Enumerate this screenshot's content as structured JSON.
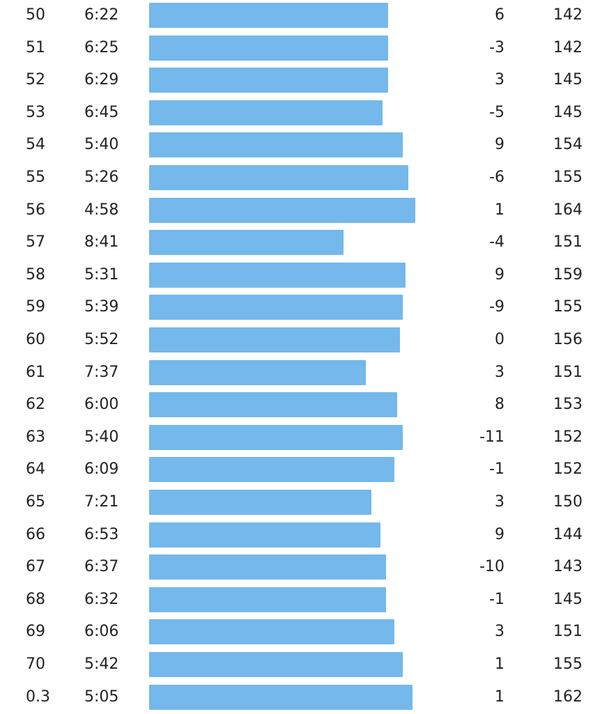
{
  "colors": {
    "bar": "#74b8ec",
    "text": "#222222",
    "background": "#ffffff"
  },
  "splits": [
    {
      "km": "50",
      "pace": "6:22",
      "elev": "6",
      "hr": "142",
      "pace_bar_fraction": 0.899
    },
    {
      "km": "51",
      "pace": "6:25",
      "elev": "-3",
      "hr": "142",
      "pace_bar_fraction": 0.899
    },
    {
      "km": "52",
      "pace": "6:29",
      "elev": "3",
      "hr": "145",
      "pace_bar_fraction": 0.899
    },
    {
      "km": "53",
      "pace": "6:45",
      "elev": "-5",
      "hr": "145",
      "pace_bar_fraction": 0.878
    },
    {
      "km": "54",
      "pace": "5:40",
      "elev": "9",
      "hr": "154",
      "pace_bar_fraction": 0.952
    },
    {
      "km": "55",
      "pace": "5:26",
      "elev": "-6",
      "hr": "155",
      "pace_bar_fraction": 0.974
    },
    {
      "km": "56",
      "pace": "4:58",
      "elev": "1",
      "hr": "164",
      "pace_bar_fraction": 1.0
    },
    {
      "km": "57",
      "pace": "8:41",
      "elev": "-4",
      "hr": "151",
      "pace_bar_fraction": 0.73
    },
    {
      "km": "58",
      "pace": "5:31",
      "elev": "9",
      "hr": "159",
      "pace_bar_fraction": 0.963
    },
    {
      "km": "59",
      "pace": "5:39",
      "elev": "-9",
      "hr": "155",
      "pace_bar_fraction": 0.952
    },
    {
      "km": "60",
      "pace": "5:52",
      "elev": "0",
      "hr": "156",
      "pace_bar_fraction": 0.942
    },
    {
      "km": "61",
      "pace": "7:37",
      "elev": "3",
      "hr": "151",
      "pace_bar_fraction": 0.815
    },
    {
      "km": "62",
      "pace": "6:00",
      "elev": "8",
      "hr": "153",
      "pace_bar_fraction": 0.931
    },
    {
      "km": "63",
      "pace": "5:40",
      "elev": "-11",
      "hr": "152",
      "pace_bar_fraction": 0.952
    },
    {
      "km": "64",
      "pace": "6:09",
      "elev": "-1",
      "hr": "152",
      "pace_bar_fraction": 0.921
    },
    {
      "km": "65",
      "pace": "7:21",
      "elev": "3",
      "hr": "150",
      "pace_bar_fraction": 0.836
    },
    {
      "km": "66",
      "pace": "6:53",
      "elev": "9",
      "hr": "144",
      "pace_bar_fraction": 0.868
    },
    {
      "km": "67",
      "pace": "6:37",
      "elev": "-10",
      "hr": "143",
      "pace_bar_fraction": 0.889
    },
    {
      "km": "68",
      "pace": "6:32",
      "elev": "-1",
      "hr": "145",
      "pace_bar_fraction": 0.889
    },
    {
      "km": "69",
      "pace": "6:06",
      "elev": "3",
      "hr": "151",
      "pace_bar_fraction": 0.921
    },
    {
      "km": "70",
      "pace": "5:42",
      "elev": "1",
      "hr": "155",
      "pace_bar_fraction": 0.952
    },
    {
      "km": "0.3",
      "pace": "5:05",
      "elev": "1",
      "hr": "162",
      "pace_bar_fraction": 0.99
    }
  ]
}
